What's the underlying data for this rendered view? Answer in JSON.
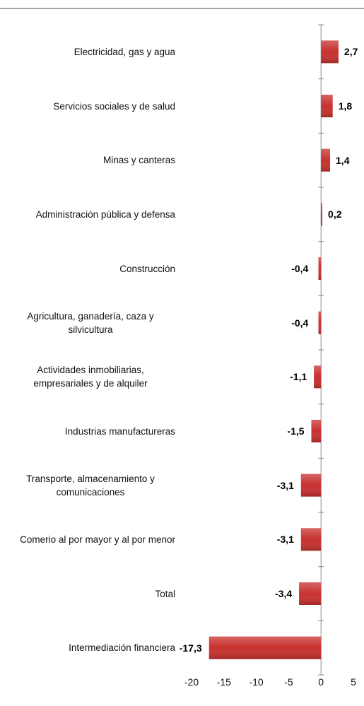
{
  "chart_data": {
    "type": "bar",
    "orientation": "horizontal",
    "categories": [
      "Electricidad, gas y agua",
      "Servicios sociales y de salud",
      "Minas y canteras",
      "Administración pública y defensa",
      "Construcción",
      "Agricultura, ganadería, caza y silvicultura",
      "Actividades inmobiliarias, empresariales y de alquiler",
      "Industrias manufactureras",
      "Transporte, almacenamiento y comunicaciones",
      "Comerio al por mayor y al por menor",
      "Total",
      "Intermediación financiera"
    ],
    "values": [
      2.7,
      1.8,
      1.4,
      0.2,
      -0.4,
      -0.4,
      -1.1,
      -1.5,
      -3.1,
      -3.1,
      -3.4,
      -17.3
    ],
    "value_labels": [
      "2,7",
      "1,8",
      "1,4",
      "0,2",
      "-0,4",
      "-0,4",
      "-1,1",
      "-1,5",
      "-3,1",
      "-3,1",
      "-3,4",
      "-17,3"
    ],
    "color": "#c8312f",
    "xlim": [
      -20,
      5
    ],
    "xticks": [
      -20,
      -15,
      -10,
      -5,
      0,
      5
    ]
  }
}
